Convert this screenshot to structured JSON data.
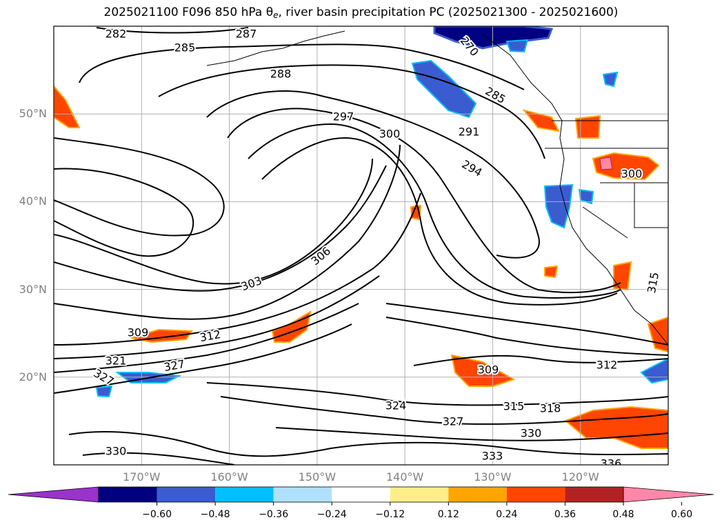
{
  "title": {
    "prefix": "2025021100 F096 850 hPa ",
    "symbol": "θ",
    "subscript": "e",
    "suffix": ", river basin precipitation PC (2025021300 - 2025021600)"
  },
  "map": {
    "lon_range": [
      -180,
      -110
    ],
    "lat_range": [
      10,
      60
    ],
    "grid": true,
    "lat_labels": [
      "50°N",
      "40°N",
      "30°N",
      "20°N"
    ],
    "lon_labels": [
      "170°W",
      "160°W",
      "150°W",
      "140°W",
      "130°W",
      "120°W"
    ],
    "contour_color": "#000000",
    "contour_labels": [
      "282",
      "285",
      "287",
      "288",
      "297",
      "300",
      "291",
      "294",
      "303",
      "306",
      "309",
      "312",
      "321",
      "327",
      "327",
      "315",
      "324",
      "327",
      "309",
      "312",
      "315",
      "318",
      "330",
      "333",
      "330",
      "336",
      "285",
      "270",
      "300"
    ],
    "colorbar": {
      "ticks": [
        "−0.60",
        "−0.48",
        "−0.36",
        "−0.24",
        "−0.12",
        "0.12",
        "0.24",
        "0.36",
        "0.48",
        "0.60"
      ],
      "colors": [
        "#9933cc",
        "#000080",
        "#3a5cd0",
        "#00bfff",
        "#b0e0ff",
        "#ffffff",
        "#ffee88",
        "#ffa500",
        "#ff4500",
        "#b22222",
        "#ff88aa"
      ]
    }
  }
}
